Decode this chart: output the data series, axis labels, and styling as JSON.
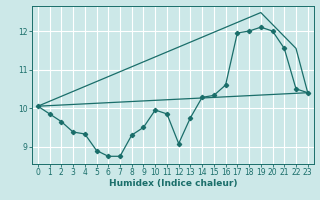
{
  "title": "",
  "xlabel": "Humidex (Indice chaleur)",
  "bg_color": "#cce8e8",
  "grid_color": "#ffffff",
  "line_color": "#1a6e6a",
  "xlim": [
    -0.5,
    23.5
  ],
  "ylim": [
    8.55,
    12.65
  ],
  "yticks": [
    9,
    10,
    11,
    12
  ],
  "xticks": [
    0,
    1,
    2,
    3,
    4,
    5,
    6,
    7,
    8,
    9,
    10,
    11,
    12,
    13,
    14,
    15,
    16,
    17,
    18,
    19,
    20,
    21,
    22,
    23
  ],
  "series1_x": [
    0,
    1,
    2,
    3,
    4,
    5,
    6,
    7,
    8,
    9,
    10,
    11,
    12,
    13,
    14,
    15,
    16,
    17,
    18,
    19,
    20,
    21,
    22,
    23
  ],
  "series1_y": [
    10.05,
    9.85,
    9.65,
    9.38,
    9.33,
    8.9,
    8.75,
    8.75,
    9.3,
    9.5,
    9.95,
    9.85,
    9.08,
    9.75,
    10.28,
    10.33,
    10.6,
    11.95,
    12.0,
    12.1,
    12.0,
    11.55,
    10.5,
    10.4
  ],
  "series2_x": [
    0,
    23
  ],
  "series2_y": [
    10.05,
    10.4
  ],
  "series3_x": [
    0,
    19,
    22,
    23
  ],
  "series3_y": [
    10.05,
    12.48,
    11.55,
    10.4
  ]
}
